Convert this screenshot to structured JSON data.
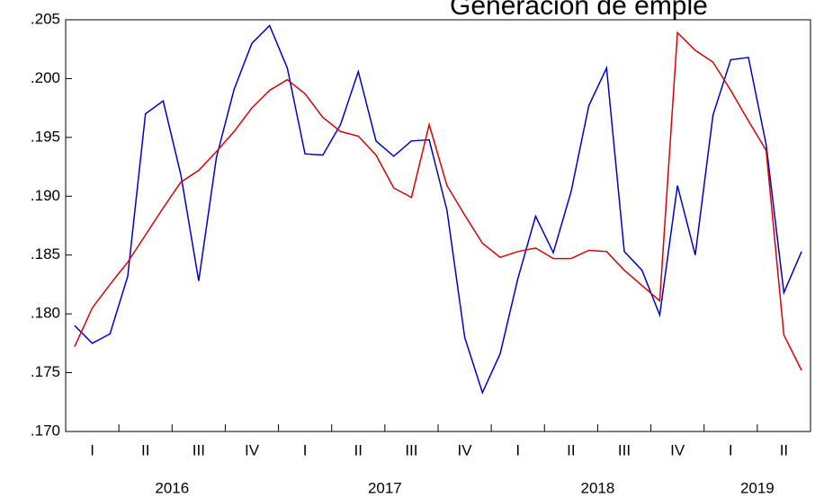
{
  "chart_data": {
    "type": "line",
    "title": "Generación de emple",
    "x_quarter_labels": [
      "I",
      "II",
      "III",
      "IV",
      "I",
      "II",
      "III",
      "IV",
      "I",
      "II",
      "III",
      "IV",
      "I",
      "II"
    ],
    "x_year_labels": [
      "2016",
      "2017",
      "2018",
      "2019"
    ],
    "ylim": [
      0.17,
      0.205
    ],
    "yticks": [
      {
        "value": 0.17,
        "label": ".170"
      },
      {
        "value": 0.175,
        "label": ".175"
      },
      {
        "value": 0.18,
        "label": ".180"
      },
      {
        "value": 0.185,
        "label": ".185"
      },
      {
        "value": 0.19,
        "label": ".190"
      },
      {
        "value": 0.195,
        "label": ".195"
      },
      {
        "value": 0.2,
        "label": ".200"
      },
      {
        "value": 0.205,
        "label": ".205"
      }
    ],
    "series": [
      {
        "color": "#0000cc",
        "values": [
          0.179,
          0.1775,
          0.1783,
          0.1832,
          0.197,
          0.1981,
          0.1918,
          0.1828,
          0.1933,
          0.1991,
          0.203,
          0.2045,
          0.2009,
          0.1936,
          0.1935,
          0.1961,
          0.2006,
          0.1947,
          0.1934,
          0.1947,
          0.1948,
          0.1888,
          0.178,
          0.1733,
          0.1766,
          0.183,
          0.1883,
          0.1852,
          0.1904,
          0.1977,
          0.2009,
          0.1853,
          0.1837,
          0.1799,
          0.1909,
          0.185,
          0.1969,
          0.2016,
          0.2018,
          0.1944,
          0.1818,
          0.1853
        ]
      },
      {
        "color": "#dd0000",
        "values": [
          0.1772,
          0.1805,
          0.1825,
          0.1844,
          0.1867,
          0.189,
          0.1912,
          0.1922,
          0.1938,
          0.1955,
          0.1975,
          0.199,
          0.1999,
          0.1987,
          0.1967,
          0.1955,
          0.1951,
          0.1935,
          0.1907,
          0.1899,
          0.1961,
          0.1909,
          0.1884,
          0.186,
          0.1848,
          0.1853,
          0.1856,
          0.1847,
          0.1847,
          0.1854,
          0.1853,
          0.1837,
          0.1824,
          0.1811,
          0.2039,
          0.2024,
          0.2014,
          0.199,
          0.1964,
          0.1939,
          0.1782,
          0.1752
        ]
      }
    ]
  }
}
